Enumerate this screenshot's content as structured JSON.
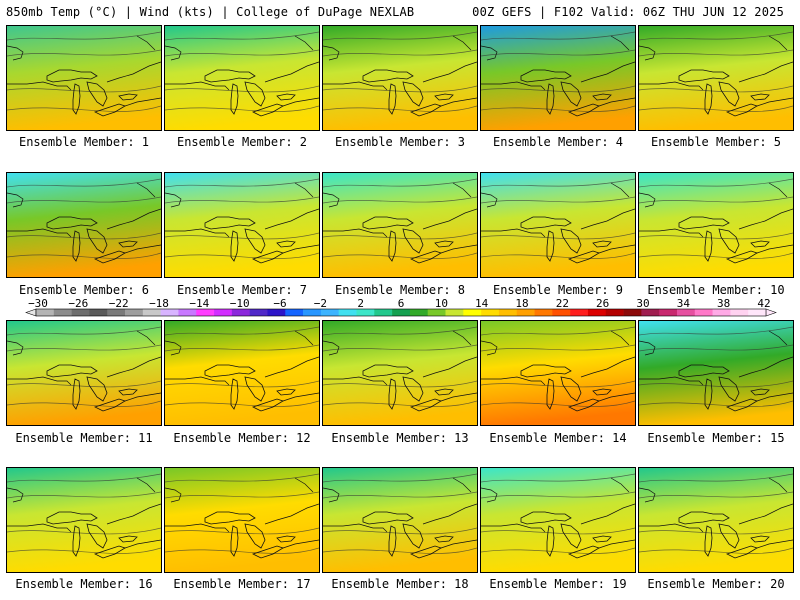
{
  "header": {
    "left": "850mb Temp (°C) | Wind (kts) | College of DuPage NEXLAB",
    "right": "00Z GEFS | F102 Valid: 06Z THU JUN 12 2025"
  },
  "members": [
    {
      "label": "Ensemble Member: 1"
    },
    {
      "label": "Ensemble Member: 2"
    },
    {
      "label": "Ensemble Member: 3"
    },
    {
      "label": "Ensemble Member: 4"
    },
    {
      "label": "Ensemble Member: 5"
    },
    {
      "label": "Ensemble Member: 6"
    },
    {
      "label": "Ensemble Member: 7"
    },
    {
      "label": "Ensemble Member: 8"
    },
    {
      "label": "Ensemble Member: 9"
    },
    {
      "label": "Ensemble Member: 10"
    },
    {
      "label": "Ensemble Member: 11"
    },
    {
      "label": "Ensemble Member: 12"
    },
    {
      "label": "Ensemble Member: 13"
    },
    {
      "label": "Ensemble Member: 14"
    },
    {
      "label": "Ensemble Member: 15"
    },
    {
      "label": "Ensemble Member: 16"
    },
    {
      "label": "Ensemble Member: 17"
    },
    {
      "label": "Ensemble Member: 18"
    },
    {
      "label": "Ensemble Member: 19"
    },
    {
      "label": "Ensemble Member: 20"
    }
  ],
  "colorbar": {
    "ticks": [
      "−30",
      "−26",
      "−22",
      "−18",
      "−14",
      "−10",
      "−6",
      "−2",
      "2",
      "6",
      "10",
      "14",
      "18",
      "22",
      "26",
      "30",
      "34",
      "38",
      "42"
    ],
    "colors": [
      "#b4b4b4",
      "#8c8c8c",
      "#6e6e6e",
      "#5a5a5a",
      "#7a7a7a",
      "#9e9e9e",
      "#c8c8c8",
      "#d8b4ff",
      "#c878ff",
      "#ff3cff",
      "#d22dff",
      "#8c28dc",
      "#5028c8",
      "#2d14c8",
      "#1464ff",
      "#2896ff",
      "#3cb4ff",
      "#40e0f0",
      "#3ce6c8",
      "#22c88c",
      "#14a050",
      "#32aa28",
      "#78c828",
      "#c8e632",
      "#ffff00",
      "#ffdc00",
      "#ffbe00",
      "#ffa000",
      "#ff7800",
      "#ff5000",
      "#ff1e1e",
      "#dc0000",
      "#b40000",
      "#8c0a0a",
      "#a01e50",
      "#c8286e",
      "#e650a0",
      "#ff78c8",
      "#ffaae6",
      "#ffd2f0",
      "#ffe6fa"
    ]
  }
}
